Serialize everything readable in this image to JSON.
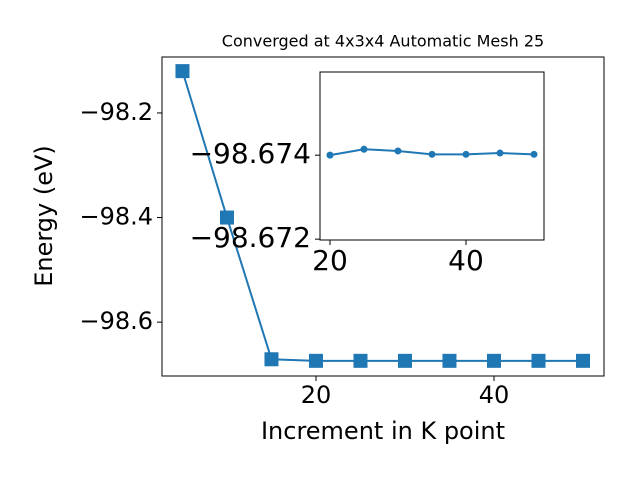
{
  "chart_data": [
    {
      "type": "line",
      "title": "Converged at 4x3x4 Automatic Mesh 25",
      "x_label": "Increment in K point",
      "y_label": "Energy (eV)",
      "x": [
        5,
        10,
        15,
        20,
        25,
        30,
        35,
        40,
        45,
        50
      ],
      "values": [
        -98.12,
        -98.4,
        -98.671,
        -98.674,
        -98.674,
        -98.674,
        -98.674,
        -98.674,
        -98.674,
        -98.674
      ],
      "color": "#1f77b4",
      "marker": "square",
      "xlim": [
        2.7,
        52.36
      ],
      "ylim": [
        -98.703,
        -98.093
      ],
      "xticks": [
        20,
        40
      ],
      "yticks": [
        {
          "value": -98.2,
          "label": "−98.2"
        },
        {
          "value": -98.4,
          "label": "−98.4"
        },
        {
          "value": -98.6,
          "label": "−98.6"
        }
      ]
    },
    {
      "type": "line",
      "x": [
        20,
        25,
        30,
        35,
        40,
        45,
        50
      ],
      "values": [
        -98.674,
        -98.67414,
        -98.6741,
        -98.67402,
        -98.67402,
        -98.67405,
        -98.67402
      ],
      "color": "#1f77b4",
      "marker": "circle",
      "xlim": [
        18.53,
        51.47
      ],
      "ylim": [
        -98.67198,
        -98.67598
      ],
      "xticks": [
        20,
        40
      ],
      "yticks": [
        {
          "value": -98.674,
          "label": "−98.674"
        },
        {
          "value": -98.672,
          "label": "−98.672"
        }
      ]
    }
  ]
}
